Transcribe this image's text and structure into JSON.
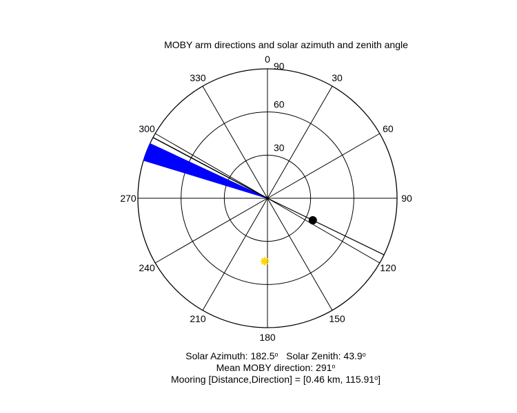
{
  "chart_data": {
    "type": "polar",
    "title": "MOBY arm directions and solar azimuth and zenith angle",
    "angular_ticks": [
      0,
      30,
      60,
      90,
      120,
      150,
      180,
      210,
      240,
      270,
      300,
      330
    ],
    "radial_ticks": [
      30,
      60,
      90
    ],
    "radial_range": [
      0,
      90
    ],
    "orientation": "clockwise-from-north",
    "arm_directions": {
      "color": "#0000ff",
      "from_deg": 287,
      "to_deg": 295,
      "radius": 90
    },
    "reference_line": {
      "direction_deg": 298,
      "radius": 90,
      "color": "#000000"
    },
    "mooring_line": {
      "direction_deg": 115.91,
      "radius": 90,
      "color": "#000000"
    },
    "mooring_marker": {
      "direction_deg": 115.91,
      "radius": 35,
      "color": "#000000"
    },
    "solar_marker": {
      "azimuth_deg": 182.5,
      "zenith_deg": 43.9,
      "color": "#ffd700"
    }
  },
  "caption": {
    "solar_azimuth_label": "Solar Azimuth: 182.5",
    "solar_zenith_label": "Solar Zenith: 43.9",
    "mean_direction_label": "Mean MOBY direction: 291",
    "mooring_label_start": "Mooring [Distance,Direction] = [0.46 km, 115.91",
    "mooring_label_end": "]",
    "degree_symbol": "o"
  }
}
